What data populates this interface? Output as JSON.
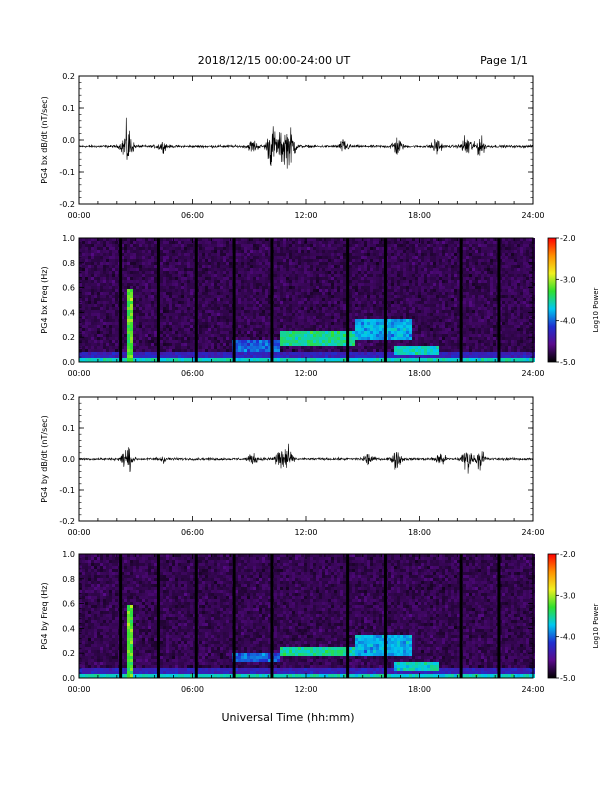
{
  "header": {
    "date_range": "2018/12/15  00:00-24:00 UT",
    "page": "Page 1/1"
  },
  "xaxis": {
    "label": "Universal Time (hh:mm)",
    "tick_labels": [
      "00:00",
      "06:00",
      "12:00",
      "18:00",
      "24:00"
    ]
  },
  "colorbar": {
    "label": "Log10 Power",
    "tick_labels": [
      "-2.0",
      "-3.0",
      "-4.0",
      "-5.0"
    ],
    "range": [
      -5.0,
      -2.0
    ],
    "colors": [
      "#000000",
      "#5a0a8c",
      "#1f2fd0",
      "#00c8f0",
      "#2fe02f",
      "#f0f020",
      "#ff9000",
      "#ff0000"
    ]
  },
  "chart_data": [
    {
      "type": "line",
      "ylabel": "PG4 bx dB/dt (nT/sec)",
      "ylim": [
        -0.2,
        0.2
      ],
      "xlim": [
        0,
        24
      ],
      "y_tick_labels": [
        "0.2",
        "0.1",
        "0.0",
        "-0.1",
        "-0.2"
      ],
      "baseline": -0.02,
      "bursts": [
        {
          "t": 2.55,
          "amp": 0.07
        },
        {
          "t": 4.4,
          "amp": 0.015
        },
        {
          "t": 9.2,
          "amp": 0.02
        },
        {
          "t": 10.2,
          "amp": 0.07
        },
        {
          "t": 10.8,
          "amp": 0.06
        },
        {
          "t": 11.2,
          "amp": 0.05
        },
        {
          "t": 14.0,
          "amp": 0.02
        },
        {
          "t": 16.8,
          "amp": 0.03
        },
        {
          "t": 18.9,
          "amp": 0.025
        },
        {
          "t": 20.5,
          "amp": 0.04
        },
        {
          "t": 21.2,
          "amp": 0.03
        }
      ]
    },
    {
      "type": "heatmap",
      "ylabel": "PG4 bx Freq (Hz)",
      "ylim": [
        0.0,
        1.0
      ],
      "xlim": [
        0,
        24
      ],
      "y_tick_labels": [
        "1.0",
        "0.8",
        "0.6",
        "0.4",
        "0.2",
        "0.0"
      ],
      "gaps_hours": [
        2.2,
        4.2,
        6.2,
        8.2,
        10.2,
        14.2,
        16.2,
        20.2,
        22.2
      ],
      "bands": [
        {
          "t0": 2.5,
          "t1": 2.7,
          "f0": 0.0,
          "f1": 0.6,
          "power": -3.2
        },
        {
          "t0": 8.0,
          "t1": 10.5,
          "f0": 0.1,
          "f1": 0.2,
          "power": -4.0
        },
        {
          "t0": 10.5,
          "t1": 14.5,
          "f0": 0.15,
          "f1": 0.25,
          "power": -3.5
        },
        {
          "t0": 14.5,
          "t1": 17.5,
          "f0": 0.2,
          "f1": 0.35,
          "power": -3.8
        },
        {
          "t0": 16.5,
          "t1": 19.0,
          "f0": 0.08,
          "f1": 0.15,
          "power": -3.6
        }
      ]
    },
    {
      "type": "line",
      "ylabel": "PG4 by dB/dt (nT/sec)",
      "ylim": [
        -0.2,
        0.2
      ],
      "xlim": [
        0,
        24
      ],
      "y_tick_labels": [
        "0.2",
        "0.1",
        "0.0",
        "-0.1",
        "-0.2"
      ],
      "baseline": 0.0,
      "bursts": [
        {
          "t": 2.55,
          "amp": 0.05
        },
        {
          "t": 4.4,
          "amp": 0.012
        },
        {
          "t": 9.2,
          "amp": 0.015
        },
        {
          "t": 10.6,
          "amp": 0.04
        },
        {
          "t": 11.0,
          "amp": 0.035
        },
        {
          "t": 15.3,
          "amp": 0.02
        },
        {
          "t": 16.8,
          "amp": 0.03
        },
        {
          "t": 19.1,
          "amp": 0.025
        },
        {
          "t": 20.5,
          "amp": 0.04
        },
        {
          "t": 21.2,
          "amp": 0.03
        }
      ]
    },
    {
      "type": "heatmap",
      "ylabel": "PG4 by Freq (Hz)",
      "ylim": [
        0.0,
        1.0
      ],
      "xlim": [
        0,
        24
      ],
      "y_tick_labels": [
        "1.0",
        "0.8",
        "0.6",
        "0.4",
        "0.2",
        "0.0"
      ],
      "gaps_hours": [
        2.2,
        4.2,
        6.2,
        8.2,
        10.2,
        14.2,
        16.2,
        20.2,
        22.2
      ],
      "bands": [
        {
          "t0": 2.5,
          "t1": 2.7,
          "f0": 0.0,
          "f1": 0.6,
          "power": -3.2
        },
        {
          "t0": 8.0,
          "t1": 10.5,
          "f0": 0.15,
          "f1": 0.22,
          "power": -4.0
        },
        {
          "t0": 10.5,
          "t1": 14.5,
          "f0": 0.18,
          "f1": 0.26,
          "power": -3.5
        },
        {
          "t0": 14.5,
          "t1": 17.5,
          "f0": 0.2,
          "f1": 0.35,
          "power": -3.8
        },
        {
          "t0": 16.5,
          "t1": 19.0,
          "f0": 0.08,
          "f1": 0.15,
          "power": -3.6
        }
      ]
    }
  ]
}
